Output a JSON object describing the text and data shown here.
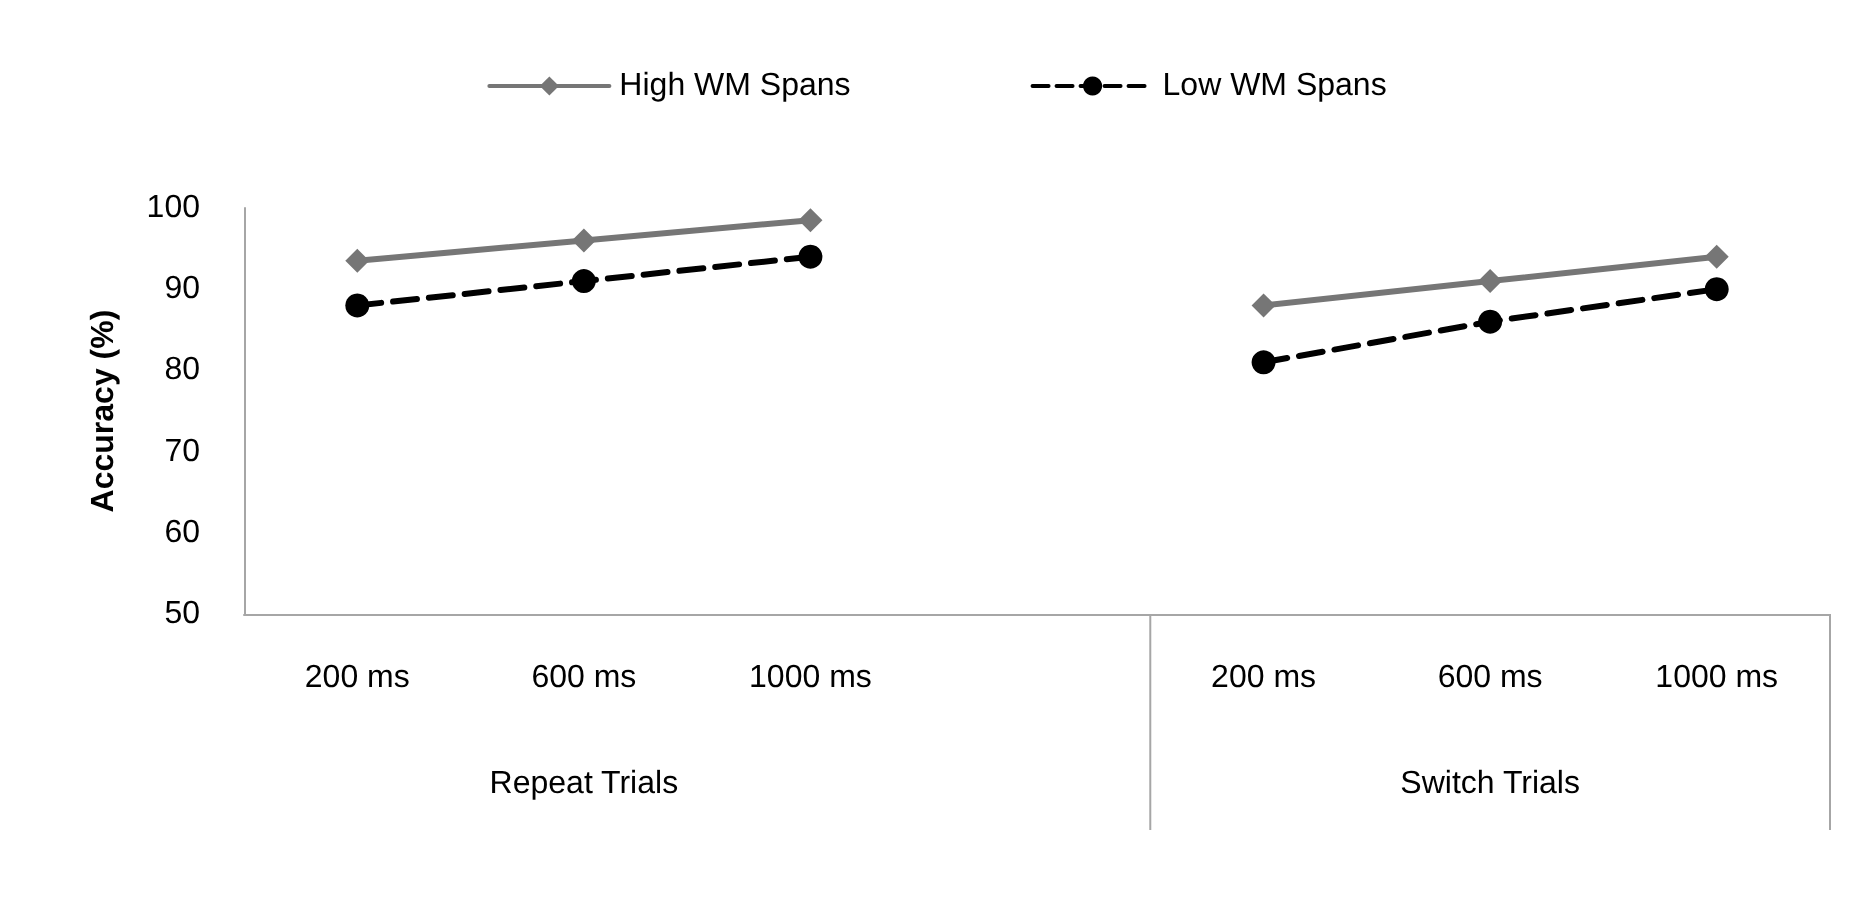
{
  "chart_data": {
    "type": "line",
    "ylabel": "Accuracy (%)",
    "categories": [
      "200 ms",
      "600 ms",
      "1000 ms",
      null,
      "200 ms",
      "600 ms",
      "1000 ms"
    ],
    "series": [
      {
        "name": "High WM Spans",
        "color": "#767676",
        "marker": "diamond",
        "line_style": "solid",
        "values": [
          93.5,
          96,
          98.5,
          null,
          88,
          91,
          94
        ]
      },
      {
        "name": "Low WM Spans",
        "color": "#000000",
        "marker": "circle",
        "line_style": "dashed",
        "values": [
          88,
          91,
          94,
          null,
          81,
          86,
          90
        ]
      }
    ],
    "annotations": [
      "Repeat Trials",
      "Switch Trials"
    ],
    "ylim": [
      50,
      100
    ],
    "yticks": [
      50,
      60,
      70,
      80,
      90,
      100
    ],
    "grid": false,
    "legend": "top"
  }
}
